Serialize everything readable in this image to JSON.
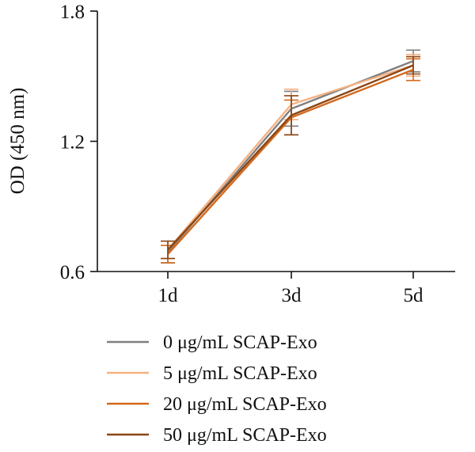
{
  "chart_data": {
    "type": "line",
    "title": "",
    "xlabel": "",
    "ylabel": "OD (450 nm)",
    "categories": [
      "1d",
      "3d",
      "5d"
    ],
    "yticks": [
      "0.6",
      "1.2",
      "1.8"
    ],
    "ylim": [
      0.6,
      1.8
    ],
    "grid": false,
    "legend_position": "bottom",
    "series": [
      {
        "name": "0 μg/mL SCAP-Exo",
        "color": "#7f7f7f",
        "values": [
          0.69,
          1.35,
          1.57
        ],
        "errors": [
          0.05,
          0.08,
          0.05
        ]
      },
      {
        "name": "5 μg/mL SCAP-Exo",
        "color": "#f4b183",
        "values": [
          0.7,
          1.37,
          1.55
        ],
        "errors": [
          0.04,
          0.07,
          0.05
        ]
      },
      {
        "name": "20 μg/mL SCAP-Exo",
        "color": "#d2691e",
        "values": [
          0.68,
          1.31,
          1.53
        ],
        "errors": [
          0.04,
          0.08,
          0.05
        ]
      },
      {
        "name": "50 μg/mL SCAP-Exo",
        "color": "#8b4513",
        "values": [
          0.7,
          1.32,
          1.55
        ],
        "errors": [
          0.04,
          0.09,
          0.04
        ]
      }
    ]
  }
}
